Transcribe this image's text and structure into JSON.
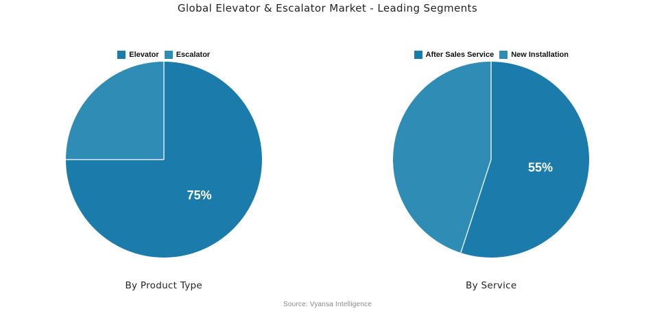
{
  "title": "Global Elevator & Escalator Market - Leading Segments",
  "source": "Source: Vyansa Intelligence",
  "colors": {
    "dark_blue": "#1b7cac",
    "light_blue": "#2e8cb5",
    "slice_divider": "#ffffff",
    "slice_label_text": "#ffffff",
    "background": "#ffffff"
  },
  "chart_data": [
    {
      "type": "pie",
      "title": "By Product Type",
      "labels": [
        "Elevator",
        "Escalator"
      ],
      "values": [
        75,
        25
      ],
      "colors": [
        "#1b7cac",
        "#2e8cb5"
      ],
      "slice_labels": [
        "75%",
        ""
      ],
      "start_angle_deg": 0,
      "direction": "clockwise",
      "legend_position": "top"
    },
    {
      "type": "pie",
      "title": "By Service",
      "labels": [
        "After Sales Service",
        "New Installation"
      ],
      "values": [
        55,
        45
      ],
      "colors": [
        "#1b7cac",
        "#2e8cb5"
      ],
      "slice_labels": [
        "55%",
        ""
      ],
      "start_angle_deg": 0,
      "direction": "clockwise",
      "legend_position": "top"
    }
  ]
}
